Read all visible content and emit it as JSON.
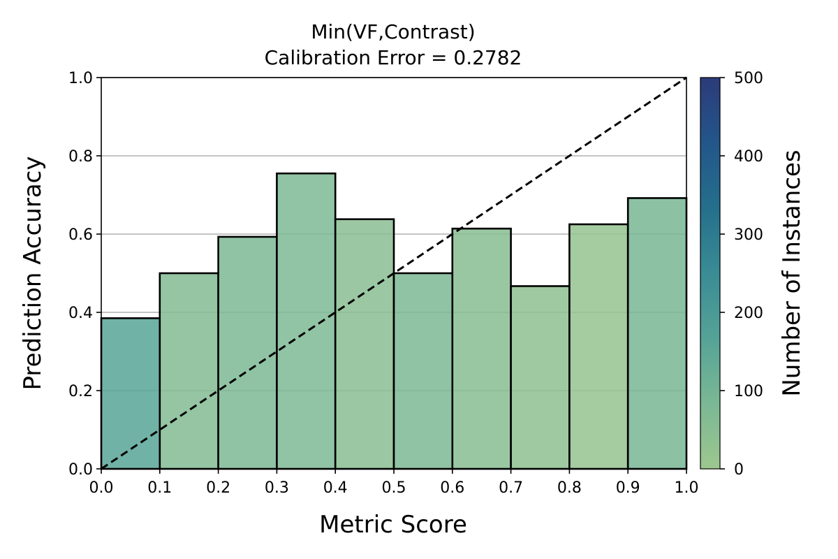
{
  "chart_data": {
    "type": "bar",
    "title": "Min(VF,Contrast)",
    "subtitle": "Calibration Error = 0.2782",
    "xlabel": "Metric Score",
    "ylabel": "Prediction Accuracy",
    "xlim": [
      0.0,
      1.0
    ],
    "ylim": [
      0.0,
      1.0
    ],
    "xticks": [
      "0.0",
      "0.1",
      "0.2",
      "0.3",
      "0.4",
      "0.5",
      "0.6",
      "0.7",
      "0.8",
      "0.9",
      "1.0"
    ],
    "yticks": [
      "0.0",
      "0.2",
      "0.4",
      "0.6",
      "0.8",
      "1.0"
    ],
    "grid": "horizontal",
    "bins": [
      {
        "x0": 0.0,
        "x1": 0.1,
        "accuracy": 0.385,
        "count": 160
      },
      {
        "x0": 0.1,
        "x1": 0.2,
        "accuracy": 0.5,
        "count": 65
      },
      {
        "x0": 0.2,
        "x1": 0.3,
        "accuracy": 0.593,
        "count": 80
      },
      {
        "x0": 0.3,
        "x1": 0.4,
        "accuracy": 0.755,
        "count": 75
      },
      {
        "x0": 0.4,
        "x1": 0.5,
        "accuracy": 0.638,
        "count": 50
      },
      {
        "x0": 0.5,
        "x1": 0.6,
        "accuracy": 0.5,
        "count": 80
      },
      {
        "x0": 0.6,
        "x1": 0.7,
        "accuracy": 0.614,
        "count": 55
      },
      {
        "x0": 0.7,
        "x1": 0.8,
        "accuracy": 0.467,
        "count": 40
      },
      {
        "x0": 0.8,
        "x1": 0.9,
        "accuracy": 0.625,
        "count": 20
      },
      {
        "x0": 0.9,
        "x1": 1.0,
        "accuracy": 0.692,
        "count": 90
      }
    ],
    "reference_line": "y = x (dashed)",
    "colorbar": {
      "label": "Number of Instances",
      "range": [
        0,
        500
      ],
      "ticks": [
        "0",
        "100",
        "200",
        "300",
        "400",
        "500"
      ],
      "colormap": [
        "#9dc78f",
        "#7bb894",
        "#55a397",
        "#3a8c95",
        "#246f8c",
        "#23568a",
        "#2c3b7a"
      ]
    },
    "colors": {
      "bar_edge": "#000000",
      "grid": "#b0b0b0",
      "reference_line": "#000000"
    }
  }
}
